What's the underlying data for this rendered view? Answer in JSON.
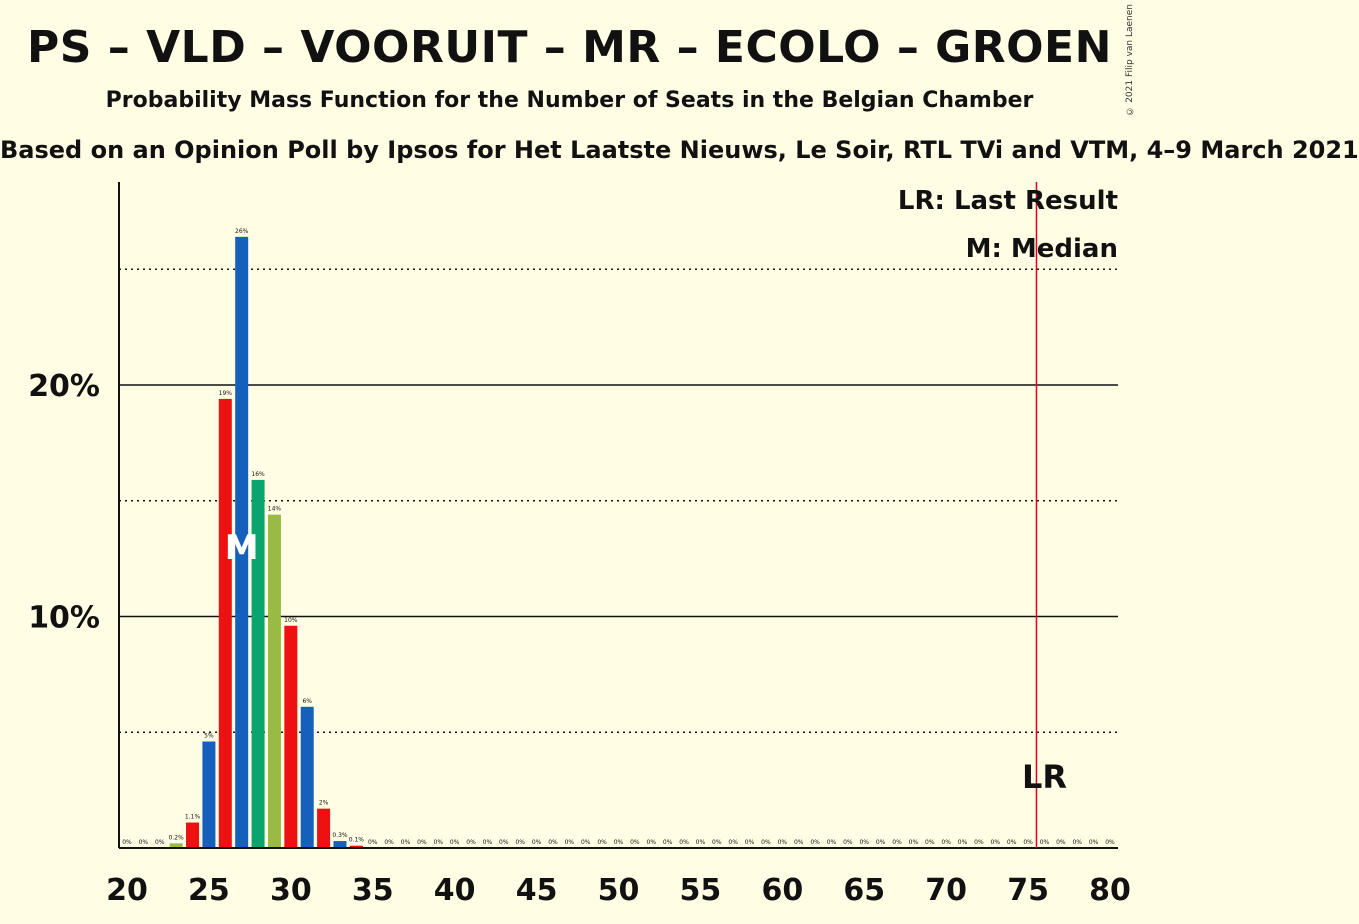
{
  "title": "PS – VLD – VOORUIT – MR – ECOLO – GROEN",
  "subtitle": "Probability Mass Function for the Number of Seats in the Belgian Chamber",
  "source": "Based on an Opinion Poll by Ipsos for Het Laatste Nieuws, Le Soir, RTL TVi and VTM, 4–9 March 2021",
  "copyright": "© 2021 Filip van Laenen",
  "legend": {
    "last_result": "LR: Last Result",
    "median": "M: Median"
  },
  "markers": {
    "median_label": "M",
    "lr_label": "LR"
  },
  "colors": {
    "red": "#EE1111",
    "blue": "#1560BD",
    "green": "#0AA56E",
    "olive": "#99BB44",
    "lr_line": "#DD0022"
  },
  "chart_data": {
    "type": "bar",
    "x": [
      20,
      21,
      22,
      23,
      24,
      25,
      26,
      27,
      28,
      29,
      30,
      31,
      32,
      33,
      34,
      35,
      36,
      37,
      38,
      39,
      40,
      41,
      42,
      43,
      44,
      45,
      46,
      47,
      48,
      49,
      50,
      51,
      52,
      53,
      54,
      55,
      56,
      57,
      58,
      59,
      60,
      61,
      62,
      63,
      64,
      65,
      66,
      67,
      68,
      69,
      70,
      71,
      72,
      73,
      74,
      75,
      76,
      77,
      78,
      79,
      80
    ],
    "values": [
      0,
      0,
      0,
      0.2,
      1.1,
      4.6,
      19.4,
      26.4,
      15.9,
      14.4,
      9.6,
      6.1,
      1.7,
      0.3,
      0.1,
      0,
      0,
      0,
      0,
      0,
      0,
      0,
      0,
      0,
      0,
      0,
      0,
      0,
      0,
      0,
      0,
      0,
      0,
      0,
      0,
      0,
      0,
      0,
      0,
      0,
      0,
      0,
      0,
      0,
      0,
      0,
      0,
      0,
      0,
      0,
      0,
      0,
      0,
      0,
      0,
      0,
      0,
      0,
      0,
      0,
      0
    ],
    "labels": [
      "0%",
      "0%",
      "0%",
      "0.2%",
      "1.1%",
      "5%",
      "19%",
      "26%",
      "16%",
      "14%",
      "10%",
      "6%",
      "2%",
      "0.3%",
      "0.1%",
      "0%",
      "0%",
      "0%",
      "0%",
      "0%",
      "0%",
      "0%",
      "0%",
      "0%",
      "0%",
      "0%",
      "0%",
      "0%",
      "0%",
      "0%",
      "0%",
      "0%",
      "0%",
      "0%",
      "0%",
      "0%",
      "0%",
      "0%",
      "0%",
      "0%",
      "0%",
      "0%",
      "0%",
      "0%",
      "0%",
      "0%",
      "0%",
      "0%",
      "0%",
      "0%",
      "0%",
      "0%",
      "0%",
      "0%",
      "0%",
      "0%",
      "0%",
      "0%",
      "0%",
      "0%",
      "0%"
    ],
    "colors": [
      "blue",
      "blue",
      "red",
      "olive",
      "red",
      "blue",
      "red",
      "blue",
      "green",
      "olive",
      "red",
      "blue",
      "red",
      "blue",
      "red",
      "blue",
      "blue",
      "green",
      "olive",
      "red",
      "blue",
      "red",
      "blue",
      "green",
      "olive",
      "red",
      "blue",
      "red",
      "blue",
      "green",
      "olive",
      "red",
      "blue",
      "red",
      "blue",
      "green",
      "olive",
      "red",
      "blue",
      "red",
      "blue",
      "green",
      "olive",
      "red",
      "blue",
      "red",
      "blue",
      "green",
      "olive",
      "red",
      "blue",
      "red",
      "blue",
      "green",
      "olive",
      "red",
      "blue",
      "red",
      "blue",
      "green",
      "olive"
    ],
    "median": 27,
    "last_result": 76,
    "xticks": [
      "20",
      "25",
      "30",
      "35",
      "40",
      "45",
      "50",
      "55",
      "60",
      "65",
      "70",
      "75",
      "80"
    ],
    "yticks": [
      "10%",
      "20%"
    ],
    "ylim": [
      0,
      28.8
    ],
    "grid": "solid at 10% and 20%, dotted at 5%, 15%, 25%"
  }
}
